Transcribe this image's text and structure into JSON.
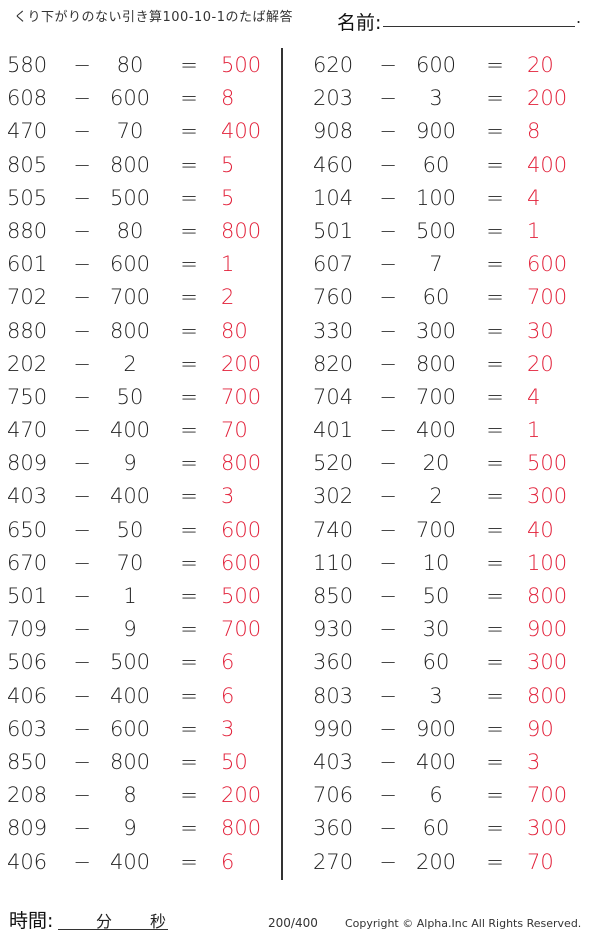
{
  "header": {
    "title": "くり下がりのない引き算100-10-1のたば解答",
    "name_label": "名前:",
    "name_end": "."
  },
  "left_problems": [
    {
      "a": "580",
      "op": "−",
      "b": "80",
      "eq": "=",
      "ans": "500"
    },
    {
      "a": "608",
      "op": "−",
      "b": "600",
      "eq": "=",
      "ans": "8"
    },
    {
      "a": "470",
      "op": "−",
      "b": "70",
      "eq": "=",
      "ans": "400"
    },
    {
      "a": "805",
      "op": "−",
      "b": "800",
      "eq": "=",
      "ans": "5"
    },
    {
      "a": "505",
      "op": "−",
      "b": "500",
      "eq": "=",
      "ans": "5"
    },
    {
      "a": "880",
      "op": "−",
      "b": "80",
      "eq": "=",
      "ans": "800"
    },
    {
      "a": "601",
      "op": "−",
      "b": "600",
      "eq": "=",
      "ans": "1"
    },
    {
      "a": "702",
      "op": "−",
      "b": "700",
      "eq": "=",
      "ans": "2"
    },
    {
      "a": "880",
      "op": "−",
      "b": "800",
      "eq": "=",
      "ans": "80"
    },
    {
      "a": "202",
      "op": "−",
      "b": "2",
      "eq": "=",
      "ans": "200"
    },
    {
      "a": "750",
      "op": "−",
      "b": "50",
      "eq": "=",
      "ans": "700"
    },
    {
      "a": "470",
      "op": "−",
      "b": "400",
      "eq": "=",
      "ans": "70"
    },
    {
      "a": "809",
      "op": "−",
      "b": "9",
      "eq": "=",
      "ans": "800"
    },
    {
      "a": "403",
      "op": "−",
      "b": "400",
      "eq": "=",
      "ans": "3"
    },
    {
      "a": "650",
      "op": "−",
      "b": "50",
      "eq": "=",
      "ans": "600"
    },
    {
      "a": "670",
      "op": "−",
      "b": "70",
      "eq": "=",
      "ans": "600"
    },
    {
      "a": "501",
      "op": "−",
      "b": "1",
      "eq": "=",
      "ans": "500"
    },
    {
      "a": "709",
      "op": "−",
      "b": "9",
      "eq": "=",
      "ans": "700"
    },
    {
      "a": "506",
      "op": "−",
      "b": "500",
      "eq": "=",
      "ans": "6"
    },
    {
      "a": "406",
      "op": "−",
      "b": "400",
      "eq": "=",
      "ans": "6"
    },
    {
      "a": "603",
      "op": "−",
      "b": "600",
      "eq": "=",
      "ans": "3"
    },
    {
      "a": "850",
      "op": "−",
      "b": "800",
      "eq": "=",
      "ans": "50"
    },
    {
      "a": "208",
      "op": "−",
      "b": "8",
      "eq": "=",
      "ans": "200"
    },
    {
      "a": "809",
      "op": "−",
      "b": "9",
      "eq": "=",
      "ans": "800"
    },
    {
      "a": "406",
      "op": "−",
      "b": "400",
      "eq": "=",
      "ans": "6"
    }
  ],
  "right_problems": [
    {
      "a": "620",
      "op": "−",
      "b": "600",
      "eq": "=",
      "ans": "20"
    },
    {
      "a": "203",
      "op": "−",
      "b": "3",
      "eq": "=",
      "ans": "200"
    },
    {
      "a": "908",
      "op": "−",
      "b": "900",
      "eq": "=",
      "ans": "8"
    },
    {
      "a": "460",
      "op": "−",
      "b": "60",
      "eq": "=",
      "ans": "400"
    },
    {
      "a": "104",
      "op": "−",
      "b": "100",
      "eq": "=",
      "ans": "4"
    },
    {
      "a": "501",
      "op": "−",
      "b": "500",
      "eq": "=",
      "ans": "1"
    },
    {
      "a": "607",
      "op": "−",
      "b": "7",
      "eq": "=",
      "ans": "600"
    },
    {
      "a": "760",
      "op": "−",
      "b": "60",
      "eq": "=",
      "ans": "700"
    },
    {
      "a": "330",
      "op": "−",
      "b": "300",
      "eq": "=",
      "ans": "30"
    },
    {
      "a": "820",
      "op": "−",
      "b": "800",
      "eq": "=",
      "ans": "20"
    },
    {
      "a": "704",
      "op": "−",
      "b": "700",
      "eq": "=",
      "ans": "4"
    },
    {
      "a": "401",
      "op": "−",
      "b": "400",
      "eq": "=",
      "ans": "1"
    },
    {
      "a": "520",
      "op": "−",
      "b": "20",
      "eq": "=",
      "ans": "500"
    },
    {
      "a": "302",
      "op": "−",
      "b": "2",
      "eq": "=",
      "ans": "300"
    },
    {
      "a": "740",
      "op": "−",
      "b": "700",
      "eq": "=",
      "ans": "40"
    },
    {
      "a": "110",
      "op": "−",
      "b": "10",
      "eq": "=",
      "ans": "100"
    },
    {
      "a": "850",
      "op": "−",
      "b": "50",
      "eq": "=",
      "ans": "800"
    },
    {
      "a": "930",
      "op": "−",
      "b": "30",
      "eq": "=",
      "ans": "900"
    },
    {
      "a": "360",
      "op": "−",
      "b": "60",
      "eq": "=",
      "ans": "300"
    },
    {
      "a": "803",
      "op": "−",
      "b": "3",
      "eq": "=",
      "ans": "800"
    },
    {
      "a": "990",
      "op": "−",
      "b": "900",
      "eq": "=",
      "ans": "90"
    },
    {
      "a": "403",
      "op": "−",
      "b": "400",
      "eq": "=",
      "ans": "3"
    },
    {
      "a": "706",
      "op": "−",
      "b": "6",
      "eq": "=",
      "ans": "700"
    },
    {
      "a": "360",
      "op": "−",
      "b": "60",
      "eq": "=",
      "ans": "300"
    },
    {
      "a": "270",
      "op": "−",
      "b": "200",
      "eq": "=",
      "ans": "70"
    }
  ],
  "footer": {
    "time_label": "時間:",
    "minutes_label": "分",
    "seconds_label": "秒",
    "page": "200/400",
    "copyright": "Copyright ©  Alpha.Inc All Rights Reserved."
  },
  "colors": {
    "answer": "#e2213a"
  }
}
